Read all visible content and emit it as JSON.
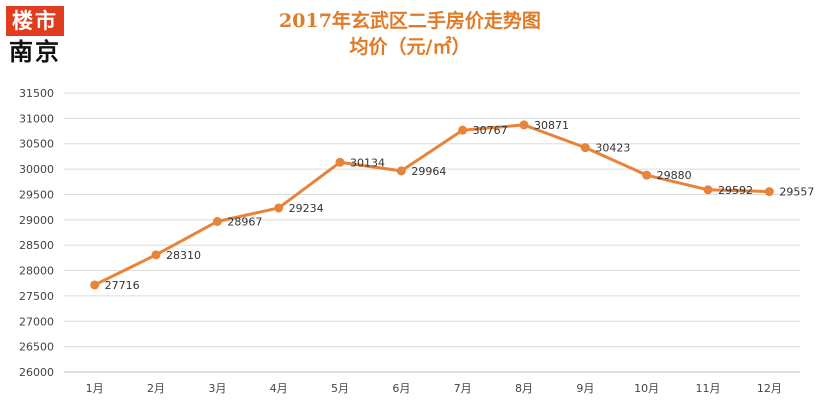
{
  "logo": {
    "top": "楼市",
    "bottom": "南京"
  },
  "chart_data": {
    "type": "line",
    "title": "2017年玄武区二手房价走势图",
    "subtitle": "均价（元/㎡）",
    "categories": [
      "1月",
      "2月",
      "3月",
      "4月",
      "5月",
      "6月",
      "7月",
      "8月",
      "9月",
      "10月",
      "11月",
      "12月"
    ],
    "series": [
      {
        "values": [
          27716,
          28310,
          28967,
          29234,
          30134,
          29964,
          30767,
          30871,
          30423,
          29880,
          29592,
          29557
        ]
      }
    ],
    "ylim": [
      26000,
      31500
    ],
    "yticks": [
      26000,
      26500,
      27000,
      27500,
      28000,
      28500,
      29000,
      29500,
      30000,
      30500,
      31000,
      31500
    ],
    "grid": true,
    "legend": "none",
    "line_color": "#e8833a"
  }
}
